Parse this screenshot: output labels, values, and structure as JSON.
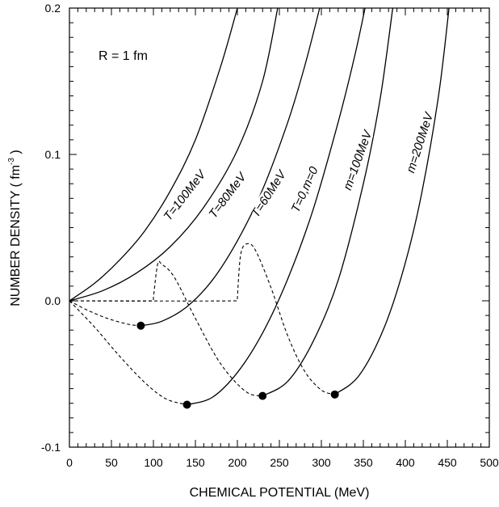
{
  "chart_data": {
    "type": "line",
    "xlabel": "CHEMICAL POTENTIAL (MeV)",
    "ylabel": "NUMBER DENSITY ( fm",
    "ylabel_sup": "-3",
    "ylabel_close": " )",
    "annotation": "R = 1 fm",
    "xlim": [
      0,
      500
    ],
    "ylim": [
      -0.1,
      0.2
    ],
    "xticks": [
      "0",
      "50",
      "100",
      "150",
      "200",
      "250",
      "300",
      "350",
      "400",
      "450",
      "500"
    ],
    "yticks": [
      "-0.1",
      "0.0",
      "0.1",
      "0.2"
    ],
    "series": [
      {
        "name": "T=100MeV",
        "style": "solid",
        "x": [
          0,
          30,
          60,
          90,
          120,
          150,
          180,
          200
        ],
        "y": [
          0.0,
          0.012,
          0.028,
          0.048,
          0.075,
          0.11,
          0.16,
          0.2
        ]
      },
      {
        "name": "T=80MeV",
        "style": "solid",
        "x": [
          0,
          40,
          80,
          120,
          160,
          200,
          230,
          248
        ],
        "y": [
          0.0,
          0.007,
          0.019,
          0.037,
          0.064,
          0.103,
          0.15,
          0.2
        ]
      },
      {
        "name": "T=60MeV",
        "style": "solid",
        "x": [
          85,
          110,
          140,
          170,
          200,
          230,
          260,
          280,
          298
        ],
        "y": [
          -0.017,
          -0.014,
          -0.004,
          0.014,
          0.041,
          0.076,
          0.122,
          0.16,
          0.2
        ]
      },
      {
        "name": "T=0,m=0",
        "style": "solid",
        "x": [
          140,
          170,
          200,
          230,
          260,
          290,
          320,
          340,
          352
        ],
        "y": [
          -0.071,
          -0.066,
          -0.049,
          -0.022,
          0.015,
          0.062,
          0.122,
          0.168,
          0.2
        ]
      },
      {
        "name": "m=100MeV",
        "style": "solid",
        "x": [
          230,
          260,
          290,
          320,
          350,
          370,
          385
        ],
        "y": [
          -0.065,
          -0.055,
          -0.028,
          0.014,
          0.08,
          0.138,
          0.2
        ]
      },
      {
        "name": "m=200MeV",
        "style": "solid",
        "x": [
          316,
          345,
          375,
          400,
          420,
          440,
          452
        ],
        "y": [
          -0.064,
          -0.051,
          -0.018,
          0.026,
          0.075,
          0.142,
          0.2
        ]
      },
      {
        "name": "",
        "style": "dashed",
        "x": [
          0,
          20,
          45,
          70,
          85
        ],
        "y": [
          0.0,
          -0.006,
          -0.012,
          -0.016,
          -0.017
        ]
      },
      {
        "name": "",
        "style": "dashed",
        "x": [
          0,
          30,
          60,
          90,
          115,
          140
        ],
        "y": [
          0.0,
          -0.018,
          -0.038,
          -0.056,
          -0.067,
          -0.071
        ]
      },
      {
        "name": "",
        "style": "dashed",
        "x": [
          0,
          100,
          100,
          105,
          110,
          125,
          150,
          180,
          210,
          230
        ],
        "y": [
          0.0,
          0.0,
          0.002,
          0.025,
          0.025,
          0.016,
          -0.012,
          -0.043,
          -0.062,
          -0.065
        ]
      },
      {
        "name": "",
        "style": "dashed",
        "x": [
          0,
          200,
          200,
          204,
          212,
          222,
          240,
          260,
          280,
          300,
          316
        ],
        "y": [
          0.0,
          0.0,
          0.002,
          0.032,
          0.039,
          0.034,
          0.009,
          -0.024,
          -0.048,
          -0.061,
          -0.064
        ]
      }
    ],
    "points": [
      {
        "x": 85,
        "y": -0.017
      },
      {
        "x": 140,
        "y": -0.071
      },
      {
        "x": 230,
        "y": -0.065
      },
      {
        "x": 316,
        "y": -0.064
      }
    ],
    "labels": [
      {
        "text": "T=100MeV",
        "x": 137,
        "y": 0.072,
        "angle": -52
      },
      {
        "text": "T=80MeV",
        "x": 188,
        "y": 0.072,
        "angle": -53
      },
      {
        "text": "T=60MeV",
        "x": 237,
        "y": 0.073,
        "angle": -57
      },
      {
        "text": "T=0,m=0",
        "x": 280,
        "y": 0.076,
        "angle": -66
      },
      {
        "text": "m=100MeV",
        "x": 343,
        "y": 0.096,
        "angle": -70
      },
      {
        "text": "m=200MeV",
        "x": 417,
        "y": 0.108,
        "angle": -72
      }
    ],
    "grid": false
  }
}
